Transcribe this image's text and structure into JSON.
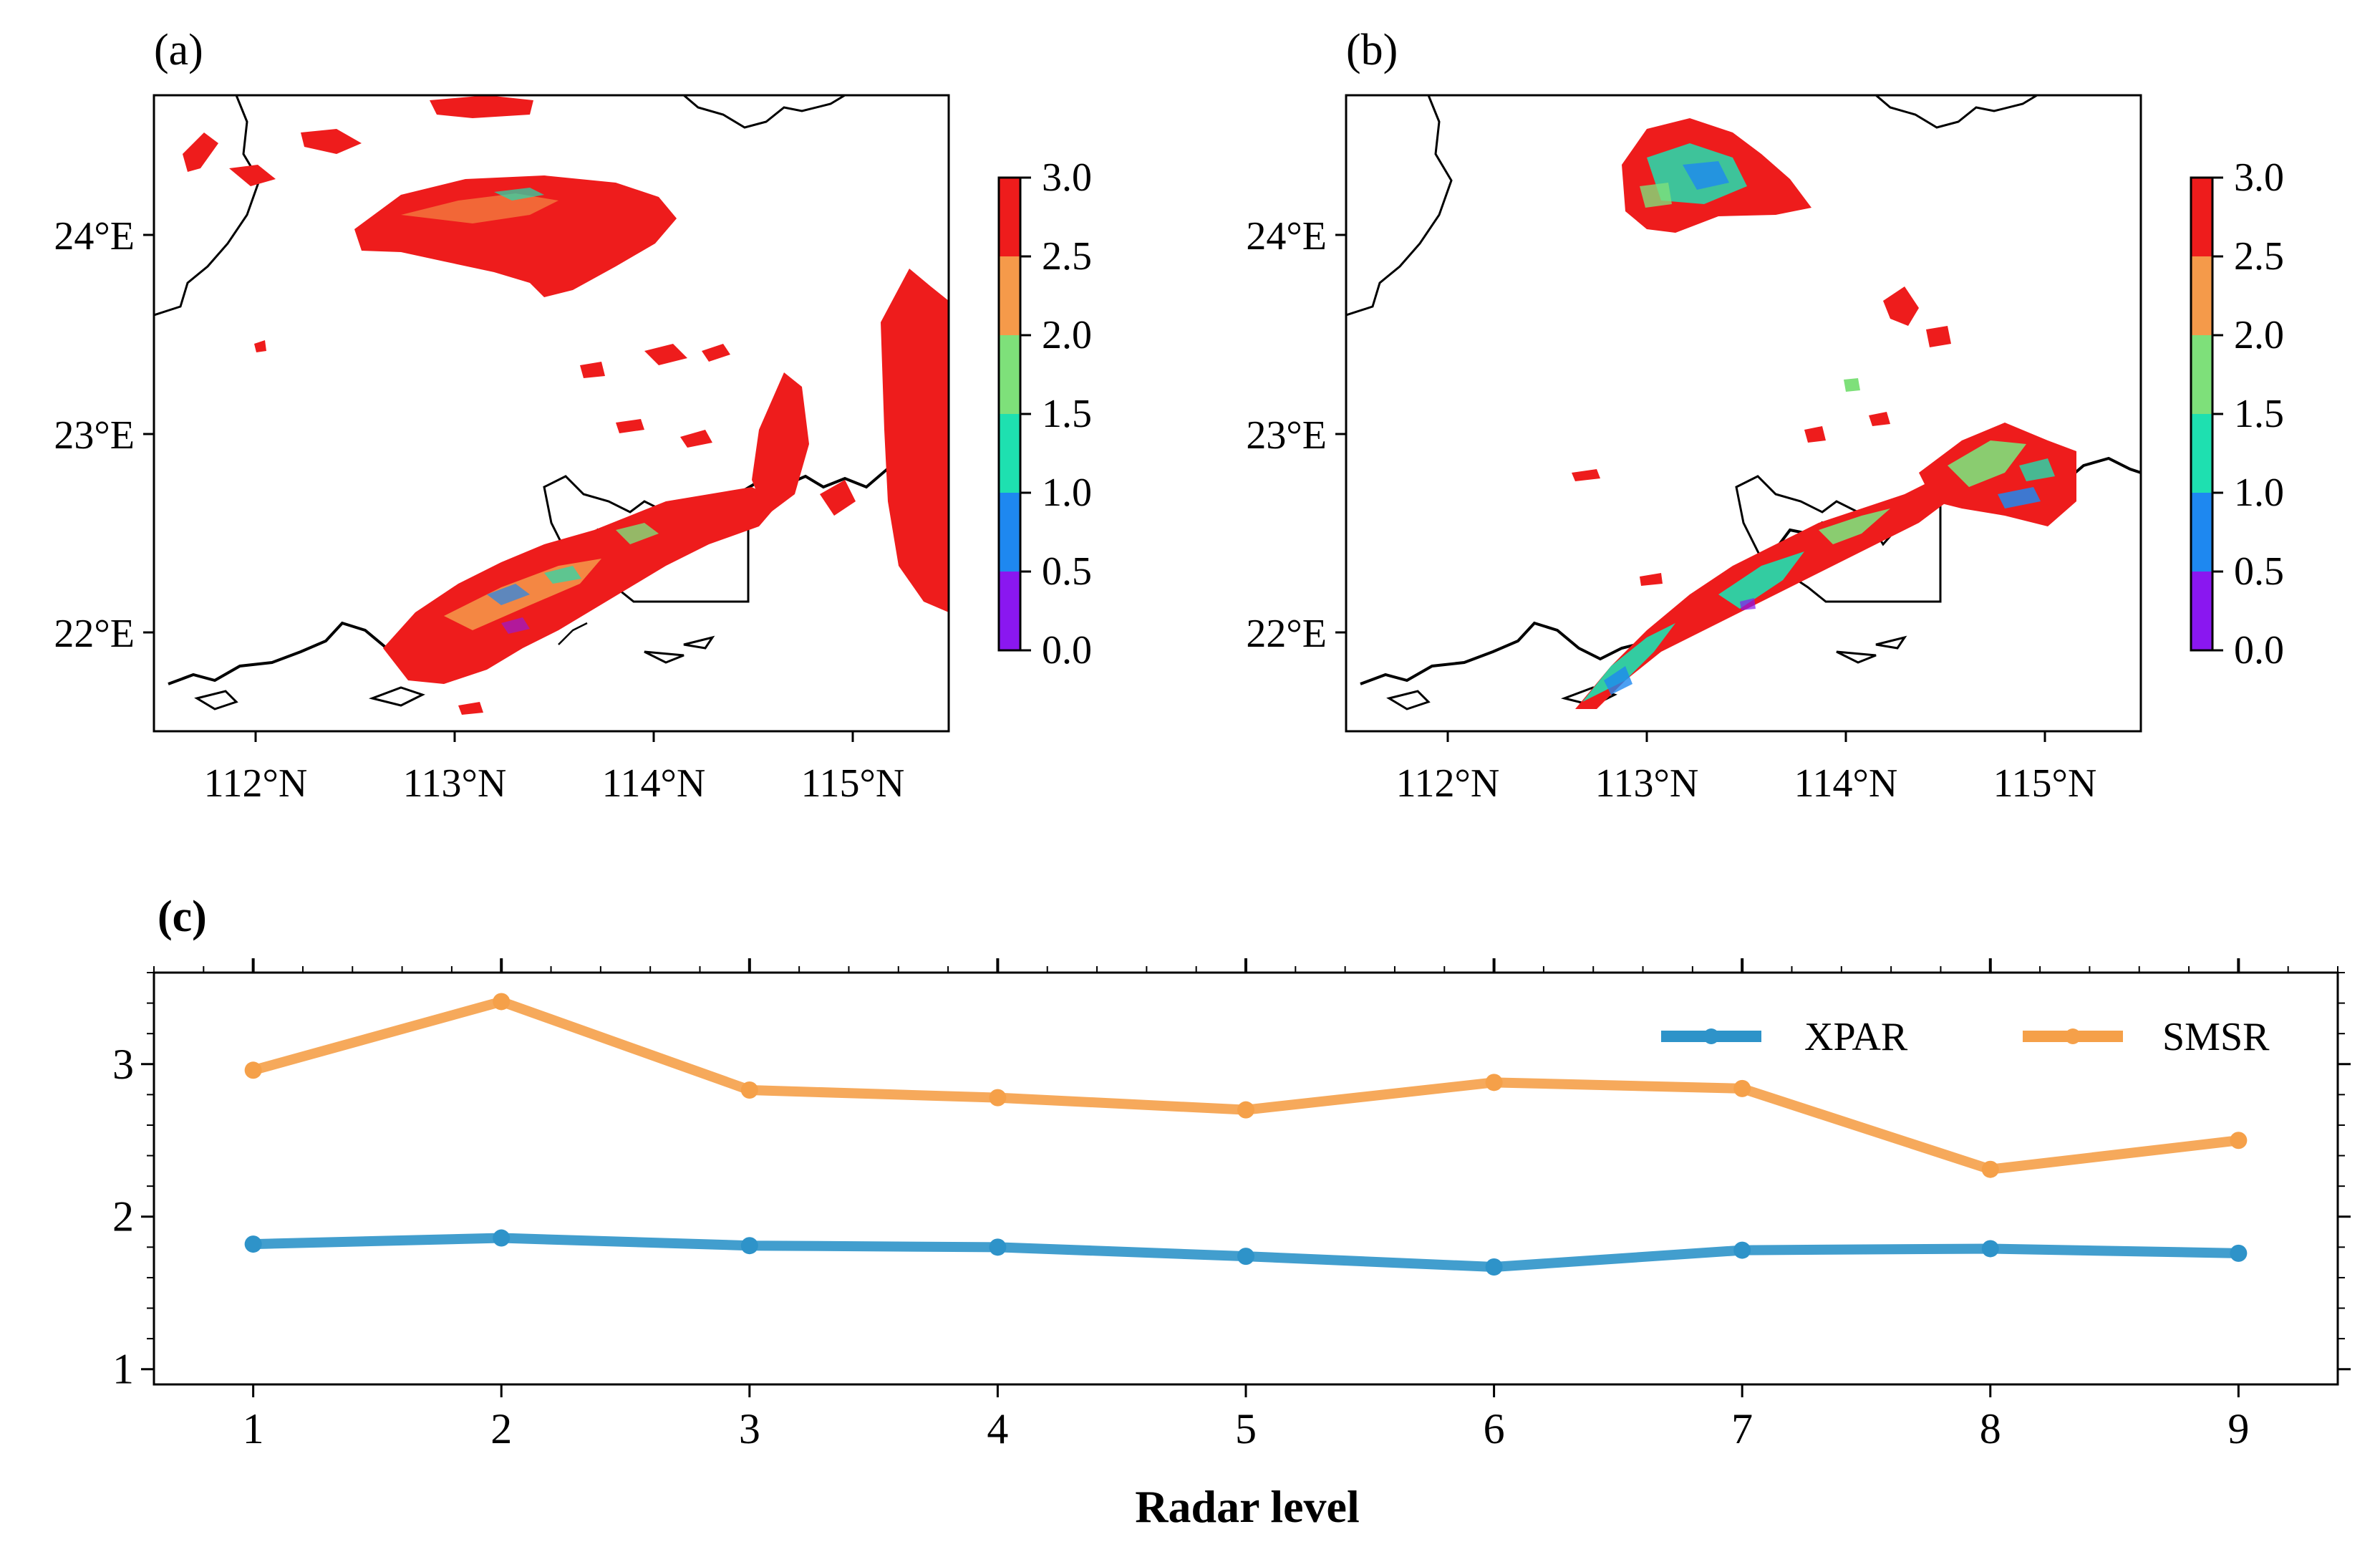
{
  "figure": {
    "panel_a_label": "(a)",
    "panel_b_label": "(b)",
    "panel_c_label": "(c)"
  },
  "maps": {
    "x_ticks": [
      "112°N",
      "113°N",
      "114°N",
      "115°N"
    ],
    "y_ticks": [
      "24°E",
      "23°E",
      "22°E"
    ],
    "lon_range": [
      111.5,
      115.5
    ],
    "lat_range": [
      21.5,
      24.7
    ],
    "colorbar": {
      "ticks": [
        "3.0",
        "2.5",
        "2.0",
        "1.5",
        "1.0",
        "0.5",
        "0.0"
      ],
      "range": [
        0.0,
        3.0
      ],
      "colors": [
        "#8a17f0",
        "#1e88f0",
        "#1ee0b0",
        "#7ee07a",
        "#f59a4a",
        "#ee1c1c"
      ]
    },
    "red": "#ee1c1c",
    "orange": "#f59a4a",
    "green": "#7ee07a",
    "cyan": "#1ee0b0",
    "blue": "#1e88f0",
    "violet": "#8a17f0"
  },
  "chart_data": {
    "type": "line",
    "title": "",
    "xlabel": "Radar level",
    "ylabel": "",
    "x": [
      1,
      2,
      3,
      4,
      5,
      6,
      7,
      8,
      9
    ],
    "xlim": [
      0.6,
      9.4
    ],
    "ylim": [
      0.9,
      3.6
    ],
    "yticks": [
      1,
      2,
      3
    ],
    "legend_position": "top-right",
    "series": [
      {
        "name": "XPAR",
        "color": "#2e93c9",
        "values": [
          1.82,
          1.86,
          1.81,
          1.8,
          1.74,
          1.67,
          1.78,
          1.79,
          1.76
        ]
      },
      {
        "name": "SMSR",
        "color": "#f5a049",
        "values": [
          2.96,
          3.41,
          2.83,
          2.78,
          2.7,
          2.88,
          2.84,
          2.31,
          2.5
        ]
      }
    ]
  }
}
